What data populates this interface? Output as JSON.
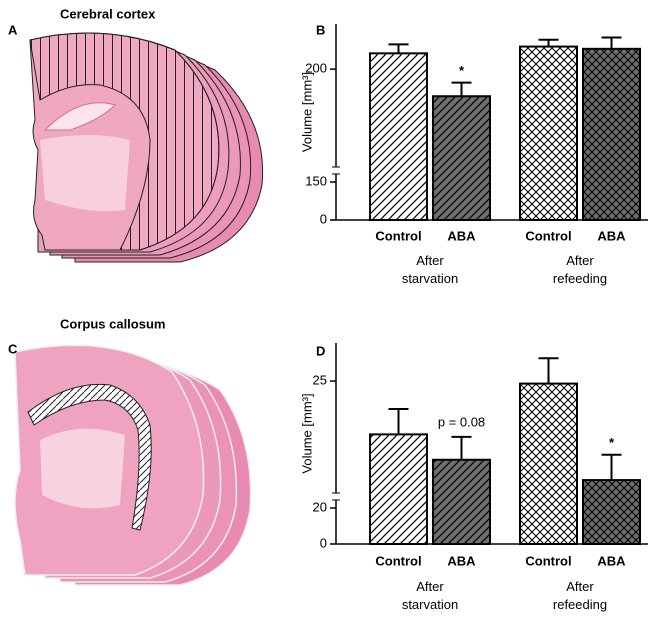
{
  "panels": {
    "a": {
      "letter": "A",
      "title": "Cerebral cortex"
    },
    "c": {
      "letter": "C",
      "title": "Corpus callosum"
    }
  },
  "chart_data": [
    {
      "type": "bar",
      "letter": "B",
      "y_label": "Volume [mm³]",
      "categories": [
        "Control",
        "ABA",
        "Control",
        "ABA"
      ],
      "groups": [
        "After\nstarvation",
        "After\nrefeeding"
      ],
      "values": [
        207,
        188,
        210,
        209
      ],
      "errors": [
        4,
        6,
        3,
        5
      ],
      "bar_labels": [
        null,
        "*",
        null,
        null
      ],
      "patterns": [
        "hatch",
        "hatch-dark",
        "cross",
        "cross-dark"
      ],
      "ylim": [
        0,
        220
      ],
      "yticks": [
        0,
        150,
        200
      ],
      "axis_break": 150
    },
    {
      "type": "bar",
      "letter": "D",
      "y_label": "Volume [mm³]",
      "categories": [
        "Control",
        "ABA",
        "Control",
        "ABA"
      ],
      "groups": [
        "After\nstarvation",
        "After\nrefeeding"
      ],
      "values": [
        22.9,
        21.9,
        24.9,
        21.1
      ],
      "errors": [
        1.0,
        0.9,
        1.0,
        1.0
      ],
      "bar_labels": [
        null,
        "p = 0.08",
        null,
        "*"
      ],
      "patterns": [
        "hatch",
        "hatch-dark",
        "cross",
        "cross-dark"
      ],
      "ylim": [
        0,
        26.5
      ],
      "yticks": [
        0,
        20,
        25
      ],
      "axis_break": 20
    }
  ]
}
